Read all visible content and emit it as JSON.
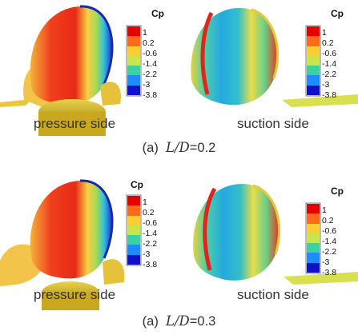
{
  "colorbar": {
    "title": "Cp",
    "ticks": [
      "1",
      "0.2",
      "-0.6",
      "-1.4",
      "-2.2",
      "-3",
      "-3.8"
    ],
    "colors": [
      "#e60000",
      "#ff6a1a",
      "#ffcc33",
      "#c8e64b",
      "#3cd2a0",
      "#1e8cff",
      "#1010c8"
    ]
  },
  "panels": [
    {
      "side": "pressure side",
      "case": "0.2"
    },
    {
      "side": "suction side",
      "case": "0.2"
    },
    {
      "side": "pressure side",
      "case": "0.3"
    },
    {
      "side": "suction side",
      "case": "0.3"
    }
  ],
  "captions": [
    {
      "prefix": "(a)",
      "var_num": "L",
      "slash": "/",
      "var_den": "D",
      "eq": "=0.2"
    },
    {
      "prefix": "(a)",
      "var_num": "L",
      "slash": "/",
      "var_den": "D",
      "eq": "=0.3"
    }
  ]
}
